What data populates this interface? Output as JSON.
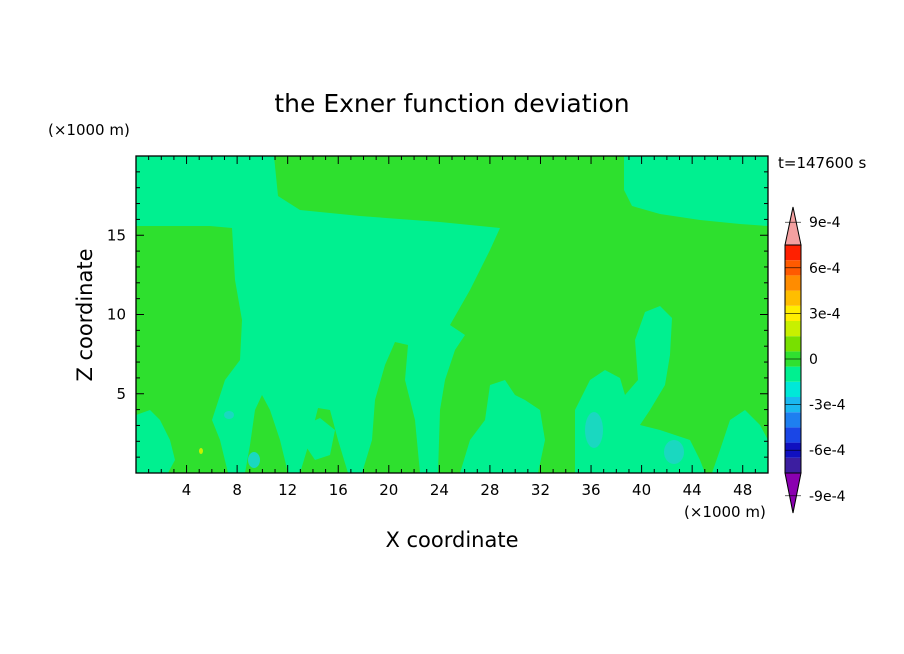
{
  "chart_data": {
    "type": "heatmap",
    "title": "the Exner function deviation",
    "xlabel": "X coordinate",
    "ylabel": "Z coordinate",
    "x_unit": "(×1000 m)",
    "y_unit": "(×1000 m)",
    "time_label": "t=147600 s",
    "xlim": [
      0,
      50
    ],
    "ylim": [
      0,
      20
    ],
    "x_ticks": [
      4,
      8,
      12,
      16,
      20,
      24,
      28,
      32,
      36,
      40,
      44,
      48
    ],
    "y_ticks": [
      5,
      10,
      15
    ],
    "colorbar": {
      "levels": [
        -0.0009,
        -0.0006,
        -0.0003,
        0,
        0.0003,
        0.0006,
        0.0009
      ],
      "tick_labels": [
        "-9e-4",
        "-6e-4",
        "-3e-4",
        "0",
        "3e-4",
        "6e-4",
        "9e-4"
      ],
      "colors_low_to_high": [
        "#8a00b0",
        "#3c1ea0",
        "#1010c0",
        "#1a46e6",
        "#1e7ff0",
        "#1ab8f0",
        "#00e8d8",
        "#00f090",
        "#30e030",
        "#78e000",
        "#c8f000",
        "#ffee00",
        "#ffbe00",
        "#ff8c00",
        "#ff5a00",
        "#ff2000",
        "#f4a0a0"
      ],
      "extend": "both"
    },
    "field_regions": [
      {
        "value_range": [
          0,
          0.0001
        ],
        "color": "#2ee02e",
        "description": "background"
      },
      {
        "value_range": [
          -0.0001,
          0
        ],
        "color": "#00f090",
        "description": "light green patches"
      },
      {
        "value_range": [
          -0.0002,
          -0.0001
        ],
        "color": "#1ad8c0",
        "description": "small cyan spots"
      }
    ]
  }
}
